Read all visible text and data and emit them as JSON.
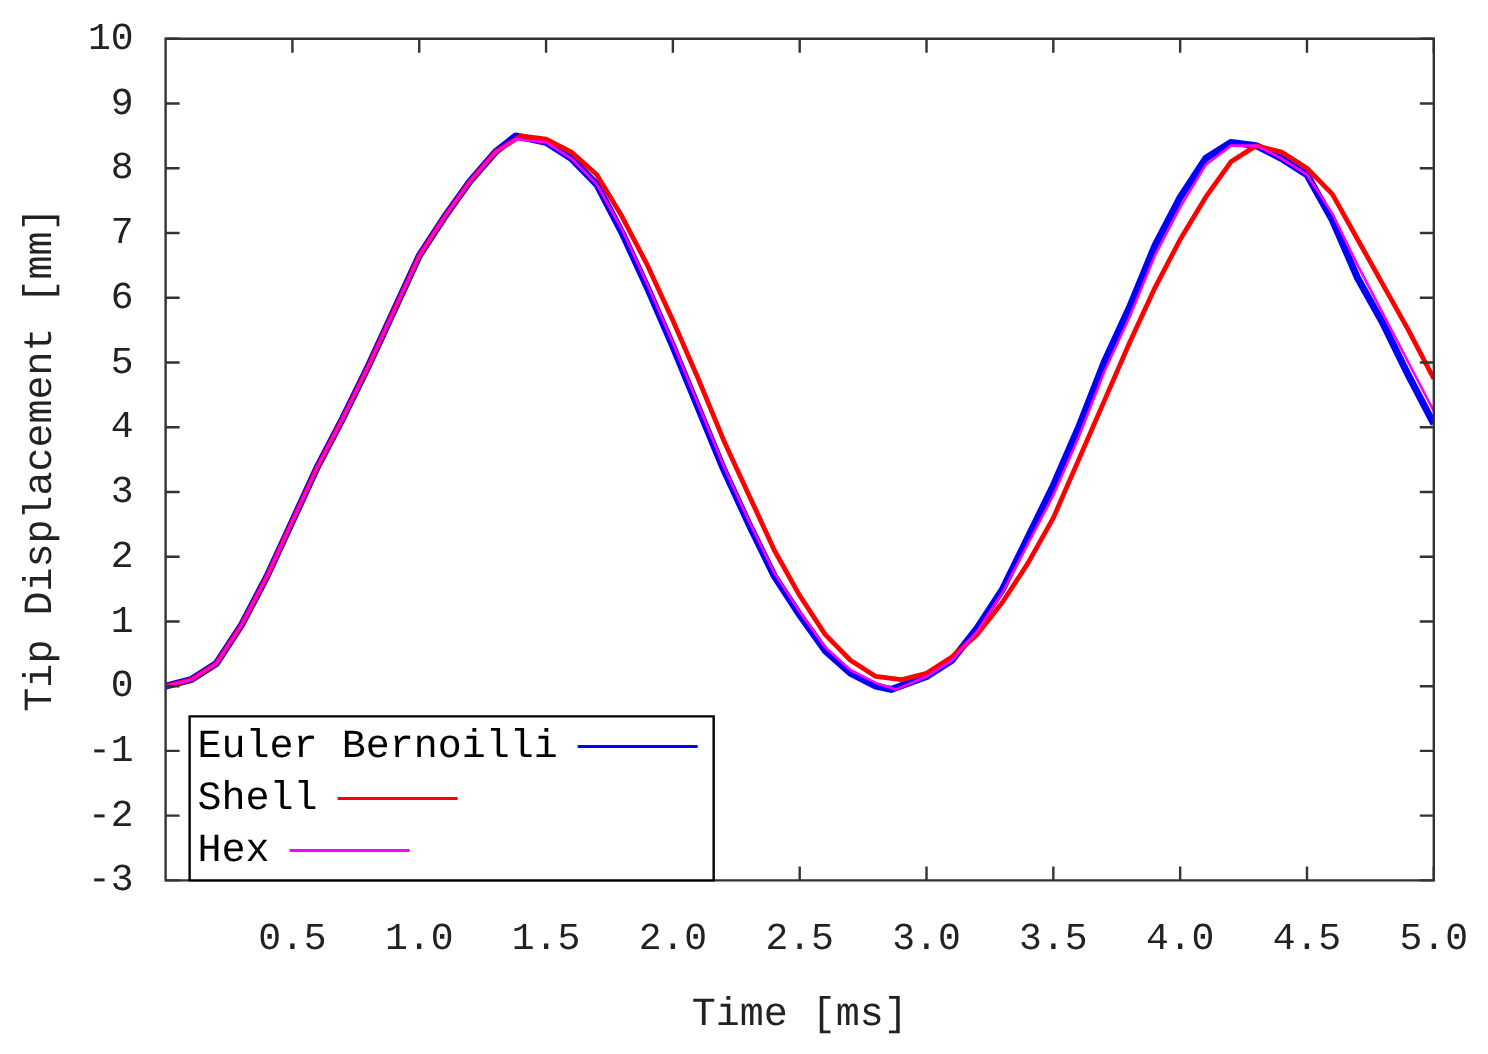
{
  "chart_data": {
    "type": "line",
    "xlabel": "Time [ms]",
    "ylabel": "Tip Displacement [mm]",
    "xlim": [
      0,
      5
    ],
    "xticks": [
      {
        "value": 0.5,
        "label": "0.5"
      },
      {
        "value": 1,
        "label": "1.0"
      },
      {
        "value": 1.5,
        "label": "1.5"
      },
      {
        "value": 2,
        "label": "2.0"
      },
      {
        "value": 2.5,
        "label": "2.5"
      },
      {
        "value": 3,
        "label": "3.0"
      },
      {
        "value": 3.5,
        "label": "3.5"
      },
      {
        "value": 4,
        "label": "4.0"
      },
      {
        "value": 4.5,
        "label": "4.5"
      },
      {
        "value": 5,
        "label": "5.0"
      }
    ],
    "ylim": [
      -3,
      10
    ],
    "yticks": [
      -3,
      -2,
      -1,
      0,
      1,
      2,
      3,
      4,
      5,
      6,
      7,
      8,
      9,
      10
    ],
    "legend": "bottom left",
    "marker": "none",
    "line_style": "solid",
    "series": [
      {
        "name": "Euler Bernoilli",
        "color": "#0000ff",
        "x": [
          0,
          0.1,
          0.2,
          0.3,
          0.4,
          0.5,
          0.6,
          0.7,
          0.8,
          0.9,
          1.0,
          1.1,
          1.2,
          1.3,
          1.38,
          1.5,
          1.6,
          1.7,
          1.8,
          1.9,
          2.0,
          2.1,
          2.2,
          2.3,
          2.4,
          2.5,
          2.6,
          2.7,
          2.8,
          2.86,
          3.0,
          3.1,
          3.2,
          3.3,
          3.4,
          3.5,
          3.6,
          3.7,
          3.8,
          3.9,
          4.0,
          4.1,
          4.2,
          4.3,
          4.4,
          4.5,
          4.6,
          4.7,
          4.8,
          4.9,
          5.0
        ],
        "values": [
          0,
          0.1,
          0.35,
          0.95,
          1.7,
          2.55,
          3.4,
          4.15,
          4.95,
          5.8,
          6.65,
          7.25,
          7.8,
          8.25,
          8.5,
          8.4,
          8.15,
          7.75,
          7.0,
          6.15,
          5.25,
          4.3,
          3.35,
          2.5,
          1.7,
          1.1,
          0.55,
          0.2,
          0.0,
          -0.05,
          0.15,
          0.4,
          0.9,
          1.5,
          2.3,
          3.1,
          4.0,
          5.0,
          5.85,
          6.8,
          7.55,
          8.15,
          8.4,
          8.35,
          8.15,
          7.9,
          7.2,
          6.3,
          5.6,
          4.8,
          4.05
        ]
      },
      {
        "name": "Shell",
        "color": "#ff0000",
        "x": [
          0,
          0.1,
          0.2,
          0.3,
          0.4,
          0.5,
          0.6,
          0.7,
          0.8,
          0.9,
          1.0,
          1.1,
          1.2,
          1.3,
          1.4,
          1.5,
          1.6,
          1.7,
          1.8,
          1.9,
          2.0,
          2.1,
          2.2,
          2.3,
          2.4,
          2.5,
          2.6,
          2.7,
          2.8,
          2.9,
          3.0,
          3.1,
          3.2,
          3.3,
          3.4,
          3.5,
          3.6,
          3.7,
          3.8,
          3.9,
          4.0,
          4.1,
          4.2,
          4.3,
          4.4,
          4.5,
          4.6,
          4.7,
          4.8,
          4.9,
          5.0
        ],
        "values": [
          0,
          0.1,
          0.35,
          0.95,
          1.7,
          2.55,
          3.4,
          4.15,
          4.95,
          5.8,
          6.65,
          7.25,
          7.8,
          8.25,
          8.5,
          8.45,
          8.25,
          7.9,
          7.25,
          6.5,
          5.65,
          4.75,
          3.8,
          2.95,
          2.1,
          1.4,
          0.8,
          0.4,
          0.15,
          0.1,
          0.2,
          0.45,
          0.8,
          1.3,
          1.9,
          2.6,
          3.5,
          4.4,
          5.3,
          6.15,
          6.9,
          7.55,
          8.1,
          8.35,
          8.25,
          8.0,
          7.6,
          6.9,
          6.2,
          5.5,
          4.75
        ]
      },
      {
        "name": "Hex",
        "color": "#ff00ff",
        "x": [
          0,
          0.1,
          0.2,
          0.3,
          0.4,
          0.5,
          0.6,
          0.7,
          0.8,
          0.9,
          1.0,
          1.1,
          1.2,
          1.3,
          1.38,
          1.5,
          1.6,
          1.7,
          1.8,
          1.9,
          2.0,
          2.1,
          2.2,
          2.3,
          2.4,
          2.5,
          2.6,
          2.7,
          2.8,
          2.88,
          3.0,
          3.1,
          3.2,
          3.3,
          3.4,
          3.5,
          3.6,
          3.7,
          3.8,
          3.9,
          4.0,
          4.1,
          4.2,
          4.3,
          4.4,
          4.5,
          4.6,
          4.7,
          4.8,
          4.9,
          5.0
        ],
        "values": [
          0,
          0.1,
          0.35,
          0.95,
          1.7,
          2.55,
          3.4,
          4.15,
          4.95,
          5.8,
          6.65,
          7.25,
          7.8,
          8.25,
          8.45,
          8.4,
          8.15,
          7.75,
          7.05,
          6.2,
          5.3,
          4.35,
          3.4,
          2.55,
          1.75,
          1.15,
          0.6,
          0.25,
          0.05,
          -0.05,
          0.15,
          0.4,
          0.85,
          1.45,
          2.2,
          2.95,
          3.85,
          4.85,
          5.7,
          6.65,
          7.4,
          8.05,
          8.35,
          8.35,
          8.15,
          7.9,
          7.3,
          6.5,
          5.75,
          5.0,
          4.25
        ]
      }
    ]
  }
}
